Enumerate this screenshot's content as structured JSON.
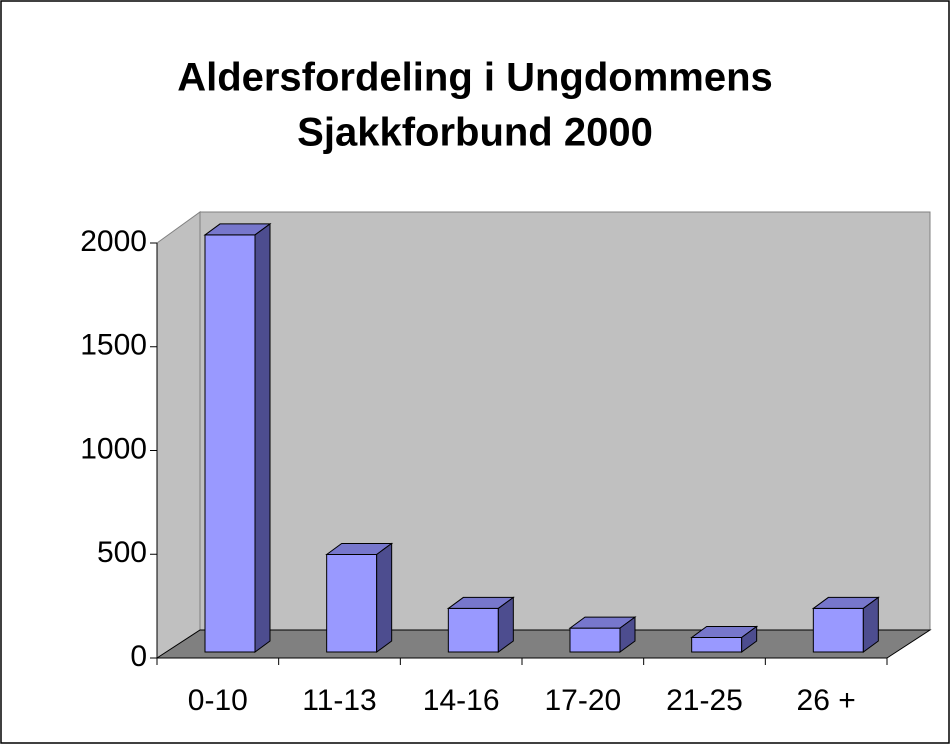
{
  "chart_data": {
    "type": "bar3d",
    "title": [
      "Aldersfordeling i Ungdommens",
      "Sjakkforbund 2000"
    ],
    "categories": [
      "0-10",
      "11-13",
      "14-16",
      "17-20",
      "21-25",
      "26 +"
    ],
    "values": [
      2010,
      470,
      210,
      115,
      70,
      210
    ],
    "color": "#9999ff",
    "ylim": [
      0,
      2000
    ],
    "yticks": [
      0,
      500,
      1000,
      1500,
      2000
    ]
  }
}
